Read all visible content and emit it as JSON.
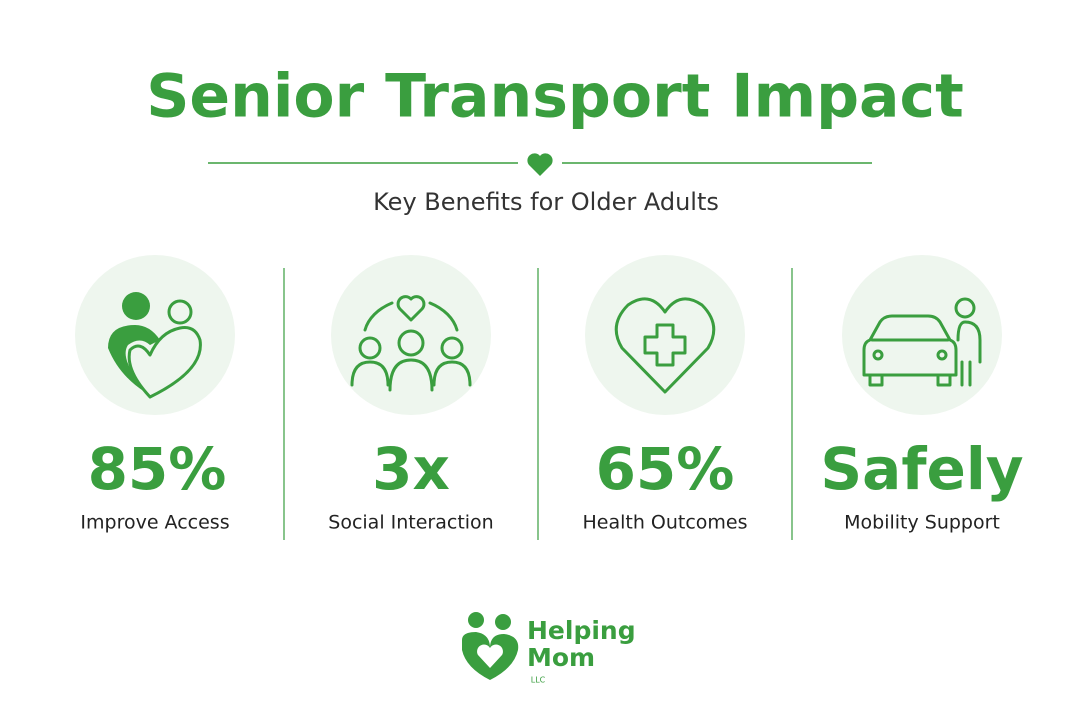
{
  "header": {
    "title": "Senior Transport Impact",
    "subtitle": "Key Benefits for Older Adults"
  },
  "stats": [
    {
      "value": "85%",
      "label": "Improve Access"
    },
    {
      "value": "3x",
      "label": "Social Interaction"
    },
    {
      "value": "65%",
      "label": "Health Outcomes"
    },
    {
      "value": "Safely",
      "label": "Mobility Support"
    }
  ],
  "logo": {
    "line1": "Helping",
    "line2": "Mom",
    "suffix": "LLC"
  }
}
